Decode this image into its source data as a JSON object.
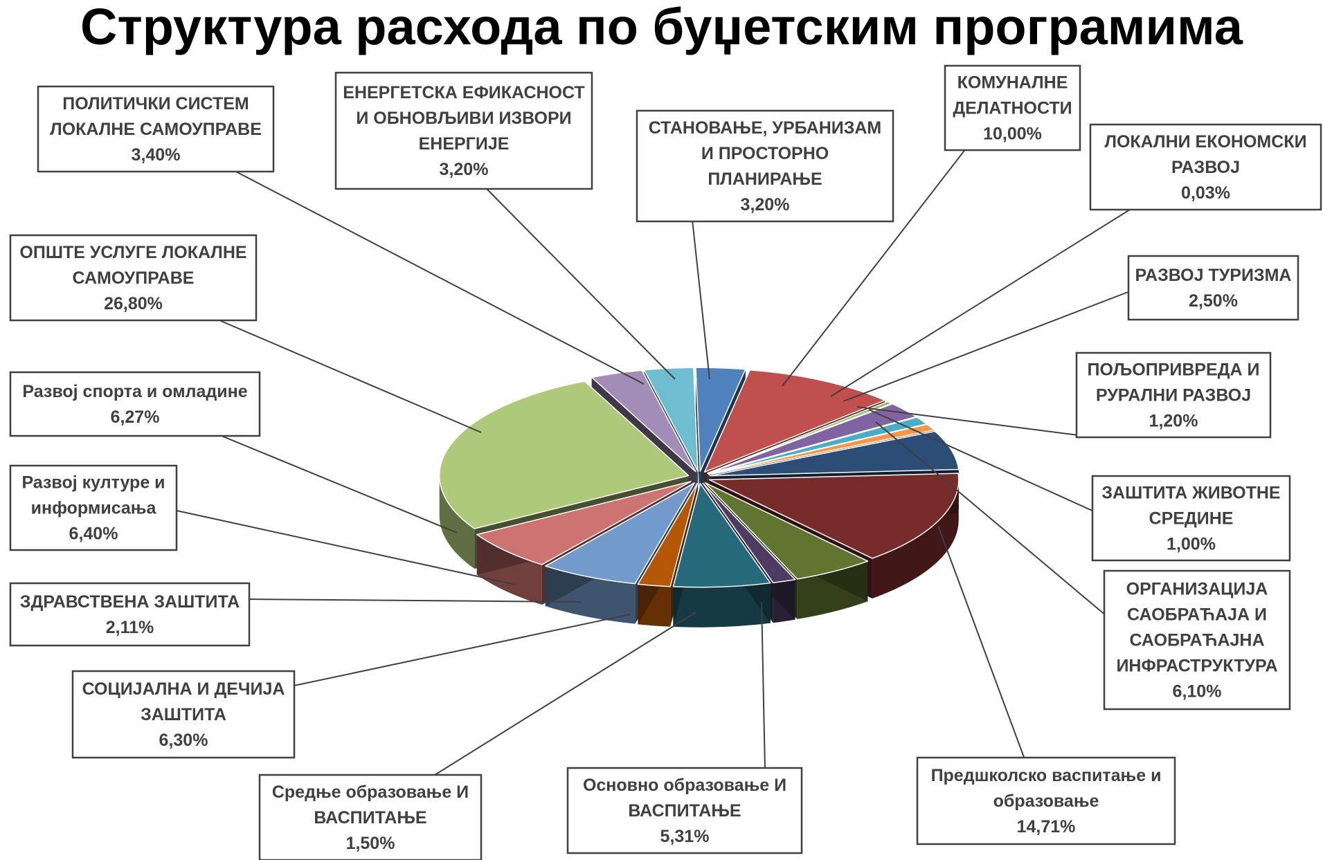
{
  "chart_data": {
    "type": "pie",
    "title": "Структура расхода по буџетским програмима",
    "slices": [
      {
        "label": [
          "СТАНОВАЊЕ, УРБАНИЗАМ",
          "И ПРОСТОРНО",
          "ПЛАНИРАЊЕ"
        ],
        "value": 3.2,
        "value_label": "3,20%",
        "color": "#4f81bd"
      },
      {
        "label": [
          "КОМУНАЛНЕ",
          "ДЕЛАТНОСТИ"
        ],
        "value": 10.0,
        "value_label": "10,00%",
        "color": "#c0504d"
      },
      {
        "label": [
          "ЛОКАЛНИ ЕКОНОМСКИ",
          "РАЗВОЈ"
        ],
        "value": 0.03,
        "value_label": "0,03%",
        "color": "#9bbb59"
      },
      {
        "label": [
          "РАЗВОЈ ТУРИЗМА"
        ],
        "value": 2.5,
        "value_label": "2,50%",
        "color": "#8064a2"
      },
      {
        "label": [
          "ПОЉОПРИВРЕДА И",
          "РУРАЛНИ РАЗВОЈ"
        ],
        "value": 1.2,
        "value_label": "1,20%",
        "color": "#4bacc6"
      },
      {
        "label": [
          "ЗАШТИТА ЖИВОТНЕ",
          "СРЕДИНЕ"
        ],
        "value": 1.0,
        "value_label": "1,00%",
        "color": "#f79646"
      },
      {
        "label": [
          "ОРГАНИЗАЦИЈА",
          "САОБРАЋАЈА И",
          "САОБРАЋАЈНА",
          "ИНФРАСТРУКТУРА"
        ],
        "value": 6.1,
        "value_label": "6,10%",
        "color": "#2c4d75"
      },
      {
        "label": [
          "Предшколско васпитање и",
          "образовање"
        ],
        "value": 14.71,
        "value_label": "14,71%",
        "color": "#772c2a"
      },
      {
        "label": [
          "Основно образовање И",
          "ВАСПИТАЊЕ"
        ],
        "value": 5.31,
        "value_label": "5,31%",
        "color": "#5f7530"
      },
      {
        "label": [
          "Средње образовање И",
          "ВАСПИТАЊЕ"
        ],
        "value": 1.5,
        "value_label": "1,50%",
        "color": "#4d3b62"
      },
      {
        "label": [
          "СОЦИЈАЛНА И ДЕЧИЈА",
          "ЗАШТИТА"
        ],
        "value": 6.3,
        "value_label": "6,30%",
        "color": "#276a7c"
      },
      {
        "label": [
          "ЗДРАВСТВЕНА ЗАШТИТА"
        ],
        "value": 2.11,
        "value_label": "2,11%",
        "color": "#b65708"
      },
      {
        "label": [
          "Развој културе и",
          "информисања"
        ],
        "value": 6.4,
        "value_label": "6,40%",
        "color": "#729aca"
      },
      {
        "label": [
          "Развој спорта и омладине"
        ],
        "value": 6.27,
        "value_label": "6,27%",
        "color": "#cd7371"
      },
      {
        "label": [
          "ОПШТЕ УСЛУГЕ ЛОКАЛНЕ",
          "САМОУПРАВЕ"
        ],
        "value": 26.8,
        "value_label": "26,80%",
        "color": "#afc97a"
      },
      {
        "label": [
          "ПОЛИТИЧКИ СИСТЕМ",
          "ЛОКАЛНЕ САМОУПРАВЕ"
        ],
        "value": 3.4,
        "value_label": "3,40%",
        "color": "#a18db7"
      },
      {
        "label": [
          "ЕНЕРГЕТСКА ЕФИКАСНОСТ",
          "И ОБНОВЉИВИ ИЗВОРИ",
          "ЕНЕРГИЈЕ"
        ],
        "value": 3.2,
        "value_label": "3,20%",
        "color": "#6fbdd1"
      }
    ],
    "style": "3d-exploded",
    "legend": "none"
  }
}
